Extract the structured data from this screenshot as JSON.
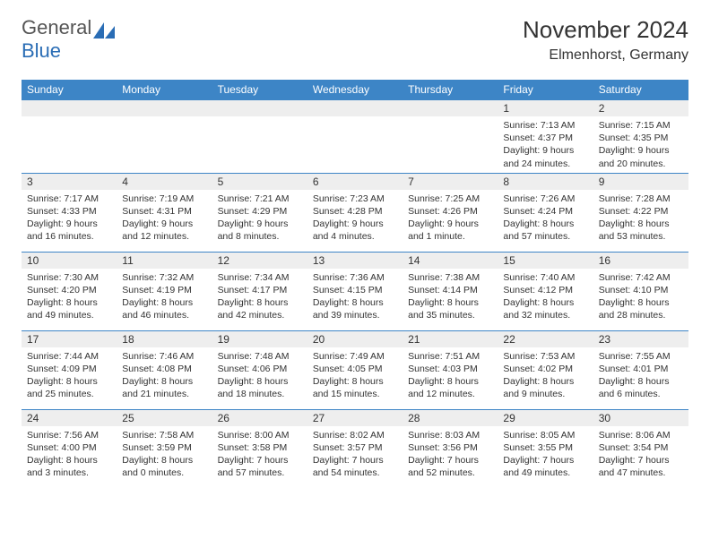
{
  "logo": {
    "text_general": "General",
    "text_blue": "Blue"
  },
  "title": "November 2024",
  "location": "Elmenhorst, Germany",
  "colors": {
    "header_bg": "#3d85c6",
    "header_text": "#ffffff",
    "daynum_bg": "#eeeeee",
    "border": "#3d85c6",
    "text": "#333333",
    "logo_gray": "#555555",
    "logo_blue": "#2a6db5"
  },
  "weekdays": [
    "Sunday",
    "Monday",
    "Tuesday",
    "Wednesday",
    "Thursday",
    "Friday",
    "Saturday"
  ],
  "weeks": [
    [
      {
        "day": "",
        "sunrise": "",
        "sunset": "",
        "daylight": ""
      },
      {
        "day": "",
        "sunrise": "",
        "sunset": "",
        "daylight": ""
      },
      {
        "day": "",
        "sunrise": "",
        "sunset": "",
        "daylight": ""
      },
      {
        "day": "",
        "sunrise": "",
        "sunset": "",
        "daylight": ""
      },
      {
        "day": "",
        "sunrise": "",
        "sunset": "",
        "daylight": ""
      },
      {
        "day": "1",
        "sunrise": "Sunrise: 7:13 AM",
        "sunset": "Sunset: 4:37 PM",
        "daylight": "Daylight: 9 hours and 24 minutes."
      },
      {
        "day": "2",
        "sunrise": "Sunrise: 7:15 AM",
        "sunset": "Sunset: 4:35 PM",
        "daylight": "Daylight: 9 hours and 20 minutes."
      }
    ],
    [
      {
        "day": "3",
        "sunrise": "Sunrise: 7:17 AM",
        "sunset": "Sunset: 4:33 PM",
        "daylight": "Daylight: 9 hours and 16 minutes."
      },
      {
        "day": "4",
        "sunrise": "Sunrise: 7:19 AM",
        "sunset": "Sunset: 4:31 PM",
        "daylight": "Daylight: 9 hours and 12 minutes."
      },
      {
        "day": "5",
        "sunrise": "Sunrise: 7:21 AM",
        "sunset": "Sunset: 4:29 PM",
        "daylight": "Daylight: 9 hours and 8 minutes."
      },
      {
        "day": "6",
        "sunrise": "Sunrise: 7:23 AM",
        "sunset": "Sunset: 4:28 PM",
        "daylight": "Daylight: 9 hours and 4 minutes."
      },
      {
        "day": "7",
        "sunrise": "Sunrise: 7:25 AM",
        "sunset": "Sunset: 4:26 PM",
        "daylight": "Daylight: 9 hours and 1 minute."
      },
      {
        "day": "8",
        "sunrise": "Sunrise: 7:26 AM",
        "sunset": "Sunset: 4:24 PM",
        "daylight": "Daylight: 8 hours and 57 minutes."
      },
      {
        "day": "9",
        "sunrise": "Sunrise: 7:28 AM",
        "sunset": "Sunset: 4:22 PM",
        "daylight": "Daylight: 8 hours and 53 minutes."
      }
    ],
    [
      {
        "day": "10",
        "sunrise": "Sunrise: 7:30 AM",
        "sunset": "Sunset: 4:20 PM",
        "daylight": "Daylight: 8 hours and 49 minutes."
      },
      {
        "day": "11",
        "sunrise": "Sunrise: 7:32 AM",
        "sunset": "Sunset: 4:19 PM",
        "daylight": "Daylight: 8 hours and 46 minutes."
      },
      {
        "day": "12",
        "sunrise": "Sunrise: 7:34 AM",
        "sunset": "Sunset: 4:17 PM",
        "daylight": "Daylight: 8 hours and 42 minutes."
      },
      {
        "day": "13",
        "sunrise": "Sunrise: 7:36 AM",
        "sunset": "Sunset: 4:15 PM",
        "daylight": "Daylight: 8 hours and 39 minutes."
      },
      {
        "day": "14",
        "sunrise": "Sunrise: 7:38 AM",
        "sunset": "Sunset: 4:14 PM",
        "daylight": "Daylight: 8 hours and 35 minutes."
      },
      {
        "day": "15",
        "sunrise": "Sunrise: 7:40 AM",
        "sunset": "Sunset: 4:12 PM",
        "daylight": "Daylight: 8 hours and 32 minutes."
      },
      {
        "day": "16",
        "sunrise": "Sunrise: 7:42 AM",
        "sunset": "Sunset: 4:10 PM",
        "daylight": "Daylight: 8 hours and 28 minutes."
      }
    ],
    [
      {
        "day": "17",
        "sunrise": "Sunrise: 7:44 AM",
        "sunset": "Sunset: 4:09 PM",
        "daylight": "Daylight: 8 hours and 25 minutes."
      },
      {
        "day": "18",
        "sunrise": "Sunrise: 7:46 AM",
        "sunset": "Sunset: 4:08 PM",
        "daylight": "Daylight: 8 hours and 21 minutes."
      },
      {
        "day": "19",
        "sunrise": "Sunrise: 7:48 AM",
        "sunset": "Sunset: 4:06 PM",
        "daylight": "Daylight: 8 hours and 18 minutes."
      },
      {
        "day": "20",
        "sunrise": "Sunrise: 7:49 AM",
        "sunset": "Sunset: 4:05 PM",
        "daylight": "Daylight: 8 hours and 15 minutes."
      },
      {
        "day": "21",
        "sunrise": "Sunrise: 7:51 AM",
        "sunset": "Sunset: 4:03 PM",
        "daylight": "Daylight: 8 hours and 12 minutes."
      },
      {
        "day": "22",
        "sunrise": "Sunrise: 7:53 AM",
        "sunset": "Sunset: 4:02 PM",
        "daylight": "Daylight: 8 hours and 9 minutes."
      },
      {
        "day": "23",
        "sunrise": "Sunrise: 7:55 AM",
        "sunset": "Sunset: 4:01 PM",
        "daylight": "Daylight: 8 hours and 6 minutes."
      }
    ],
    [
      {
        "day": "24",
        "sunrise": "Sunrise: 7:56 AM",
        "sunset": "Sunset: 4:00 PM",
        "daylight": "Daylight: 8 hours and 3 minutes."
      },
      {
        "day": "25",
        "sunrise": "Sunrise: 7:58 AM",
        "sunset": "Sunset: 3:59 PM",
        "daylight": "Daylight: 8 hours and 0 minutes."
      },
      {
        "day": "26",
        "sunrise": "Sunrise: 8:00 AM",
        "sunset": "Sunset: 3:58 PM",
        "daylight": "Daylight: 7 hours and 57 minutes."
      },
      {
        "day": "27",
        "sunrise": "Sunrise: 8:02 AM",
        "sunset": "Sunset: 3:57 PM",
        "daylight": "Daylight: 7 hours and 54 minutes."
      },
      {
        "day": "28",
        "sunrise": "Sunrise: 8:03 AM",
        "sunset": "Sunset: 3:56 PM",
        "daylight": "Daylight: 7 hours and 52 minutes."
      },
      {
        "day": "29",
        "sunrise": "Sunrise: 8:05 AM",
        "sunset": "Sunset: 3:55 PM",
        "daylight": "Daylight: 7 hours and 49 minutes."
      },
      {
        "day": "30",
        "sunrise": "Sunrise: 8:06 AM",
        "sunset": "Sunset: 3:54 PM",
        "daylight": "Daylight: 7 hours and 47 minutes."
      }
    ]
  ]
}
